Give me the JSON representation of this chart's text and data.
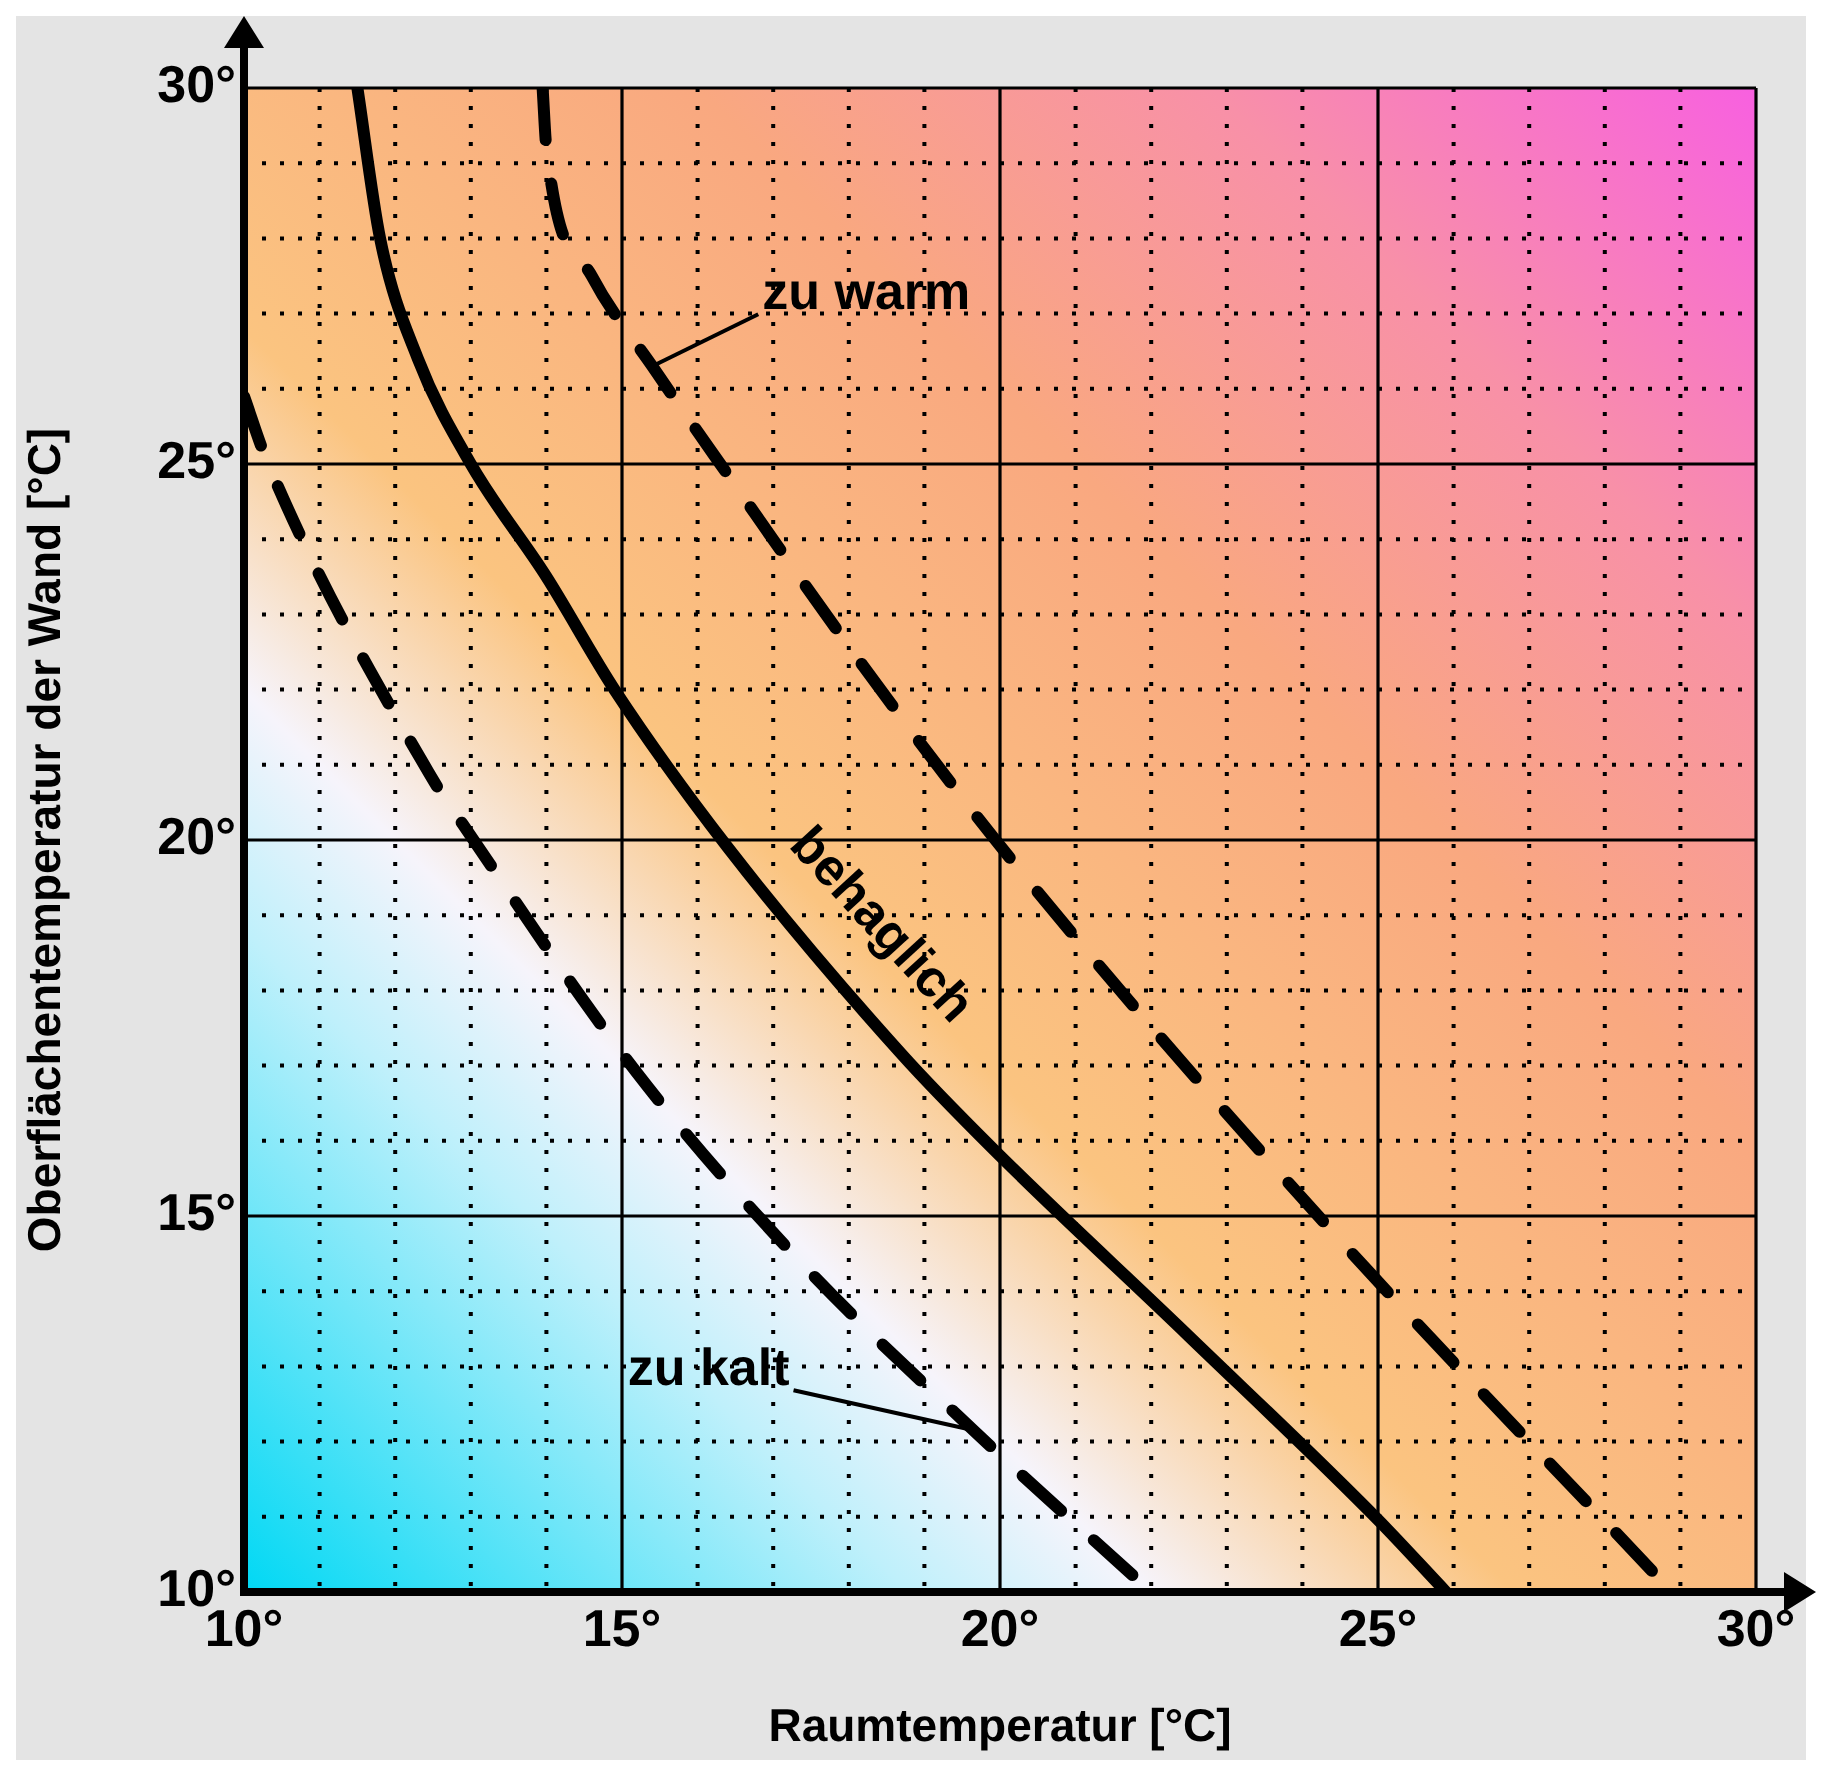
{
  "chart_data": {
    "type": "line",
    "xlabel": "Raumtemperatur [°C]",
    "ylabel": "Oberflächentemperatur der Wand [°C]",
    "xlim": [
      10,
      30
    ],
    "ylim": [
      10,
      30
    ],
    "xticks": [
      {
        "value": 10,
        "label": "10°"
      },
      {
        "value": 11,
        "label": null
      },
      {
        "value": 12,
        "label": null
      },
      {
        "value": 13,
        "label": null
      },
      {
        "value": 14,
        "label": null
      },
      {
        "value": 15,
        "label": "15°"
      },
      {
        "value": 16,
        "label": null
      },
      {
        "value": 17,
        "label": null
      },
      {
        "value": 18,
        "label": null
      },
      {
        "value": 19,
        "label": null
      },
      {
        "value": 20,
        "label": "20°"
      },
      {
        "value": 21,
        "label": null
      },
      {
        "value": 22,
        "label": null
      },
      {
        "value": 23,
        "label": null
      },
      {
        "value": 24,
        "label": null
      },
      {
        "value": 25,
        "label": "25°"
      },
      {
        "value": 26,
        "label": null
      },
      {
        "value": 27,
        "label": null
      },
      {
        "value": 28,
        "label": null
      },
      {
        "value": 29,
        "label": null
      },
      {
        "value": 30,
        "label": "30°"
      }
    ],
    "yticks": [
      {
        "value": 10,
        "label": "10°"
      },
      {
        "value": 11,
        "label": null
      },
      {
        "value": 12,
        "label": null
      },
      {
        "value": 13,
        "label": null
      },
      {
        "value": 14,
        "label": null
      },
      {
        "value": 15,
        "label": "15°"
      },
      {
        "value": 16,
        "label": null
      },
      {
        "value": 17,
        "label": null
      },
      {
        "value": 18,
        "label": null
      },
      {
        "value": 19,
        "label": null
      },
      {
        "value": 20,
        "label": "20°"
      },
      {
        "value": 21,
        "label": null
      },
      {
        "value": 22,
        "label": null
      },
      {
        "value": 23,
        "label": null
      },
      {
        "value": 24,
        "label": null
      },
      {
        "value": 25,
        "label": "25°"
      },
      {
        "value": 26,
        "label": null
      },
      {
        "value": 27,
        "label": null
      },
      {
        "value": 28,
        "label": null
      },
      {
        "value": 29,
        "label": null
      },
      {
        "value": 30,
        "label": "30°"
      }
    ],
    "grid": true,
    "marker": "none",
    "series": [
      {
        "name": "zu warm",
        "color": "#000000",
        "line_style": "dashed",
        "x": [
          13.95,
          14.0,
          14.6,
          15.4,
          16.3,
          18.2,
          20.1,
          24.3,
          28.7
        ],
        "values": [
          30,
          29.2,
          27.5,
          26.3,
          25,
          22.3,
          19.8,
          14.9,
          10.2
        ]
      },
      {
        "name": "behaglich",
        "color": "#000000",
        "line_style": "solid",
        "x": [
          11.5,
          11.8,
          12.3,
          13,
          14,
          14.9,
          16.4,
          18.7,
          19.9,
          22.5,
          25,
          25.9
        ],
        "values": [
          30,
          28,
          26.4,
          25,
          23.5,
          22,
          19.9,
          17.15,
          15.9,
          13.4,
          10.96,
          10
        ]
      },
      {
        "name": "zu kalt",
        "color": "#000000",
        "line_style": "dashed",
        "x": [
          10,
          10.3,
          12.5,
          12.9,
          15.2,
          17.35,
          19.65,
          22
        ],
        "values": [
          25.9,
          25.05,
          20.8,
          20.2,
          16.9,
          14.4,
          12.15,
          10
        ]
      }
    ]
  }
}
